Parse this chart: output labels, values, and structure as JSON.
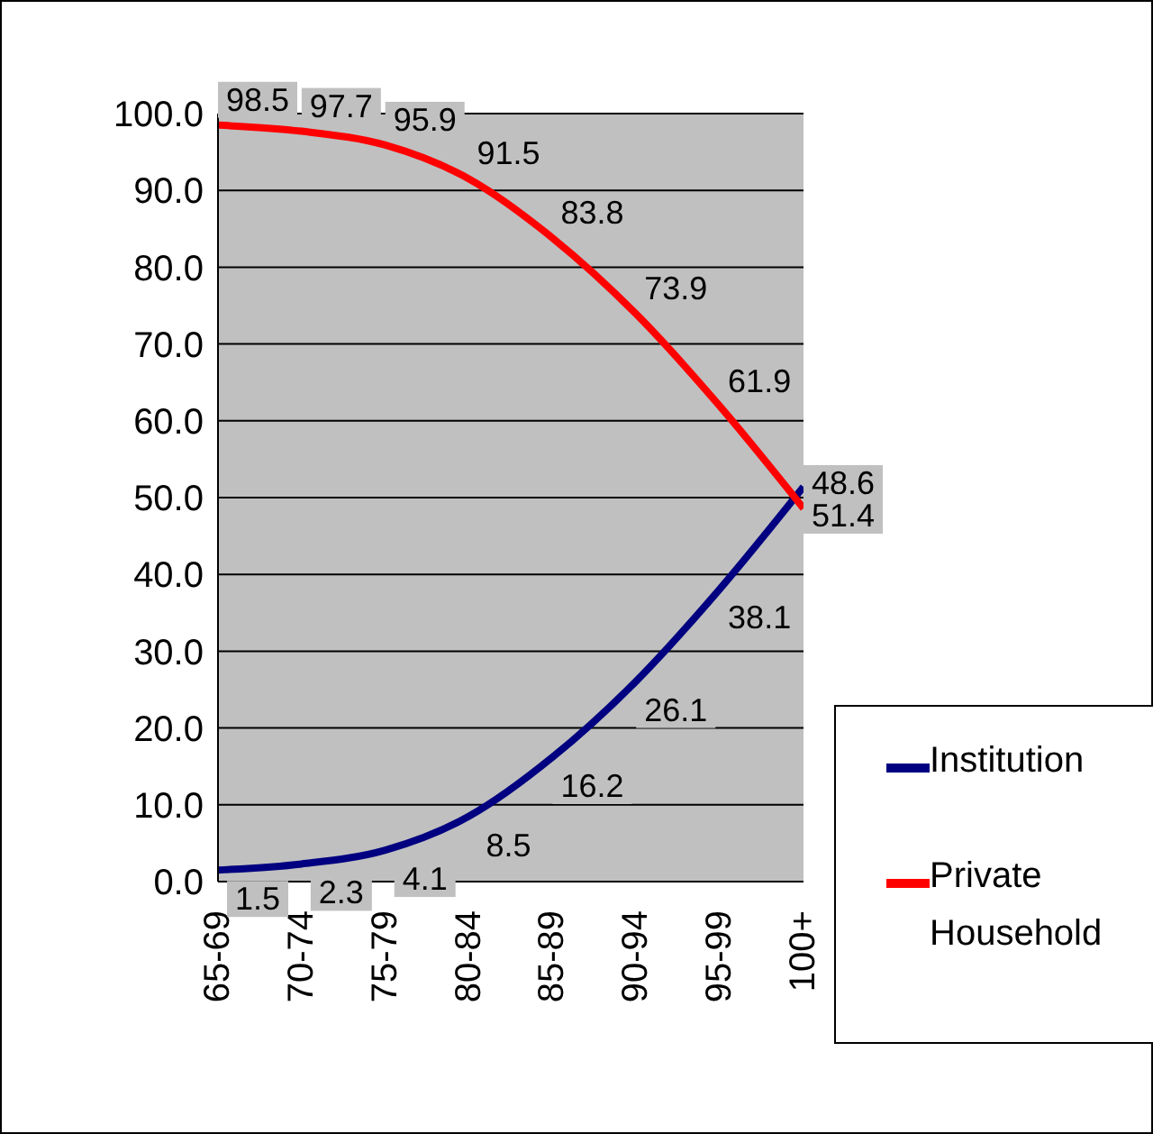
{
  "chart_data": {
    "type": "line",
    "categories": [
      "65-69",
      "70-74",
      "75-79",
      "80-84",
      "85-89",
      "90-94",
      "95-99",
      "100+"
    ],
    "series": [
      {
        "name": "Institution",
        "color": "#000080",
        "values": [
          1.5,
          2.3,
          4.1,
          8.5,
          16.2,
          26.1,
          38.1,
          51.4
        ]
      },
      {
        "name": "Private Household",
        "color": "#ff0000",
        "values": [
          98.5,
          97.7,
          95.9,
          91.5,
          83.8,
          73.9,
          61.9,
          48.6
        ]
      }
    ],
    "ylim": [
      0,
      100
    ],
    "yticks": [
      {
        "value": 0,
        "label": "0.0"
      },
      {
        "value": 10,
        "label": "10.0"
      },
      {
        "value": 20,
        "label": "20.0"
      },
      {
        "value": 30,
        "label": "30.0"
      },
      {
        "value": 40,
        "label": "40.0"
      },
      {
        "value": 50,
        "label": "50.0"
      },
      {
        "value": 60,
        "label": "60.0"
      },
      {
        "value": 70,
        "label": "70.0"
      },
      {
        "value": 80,
        "label": "80.0"
      },
      {
        "value": 90,
        "label": "90.0"
      },
      {
        "value": 100,
        "label": "100.0"
      }
    ],
    "grid": "y",
    "legend": "bottom right",
    "marker": "none",
    "line_style": "solid",
    "data_labels": true
  }
}
